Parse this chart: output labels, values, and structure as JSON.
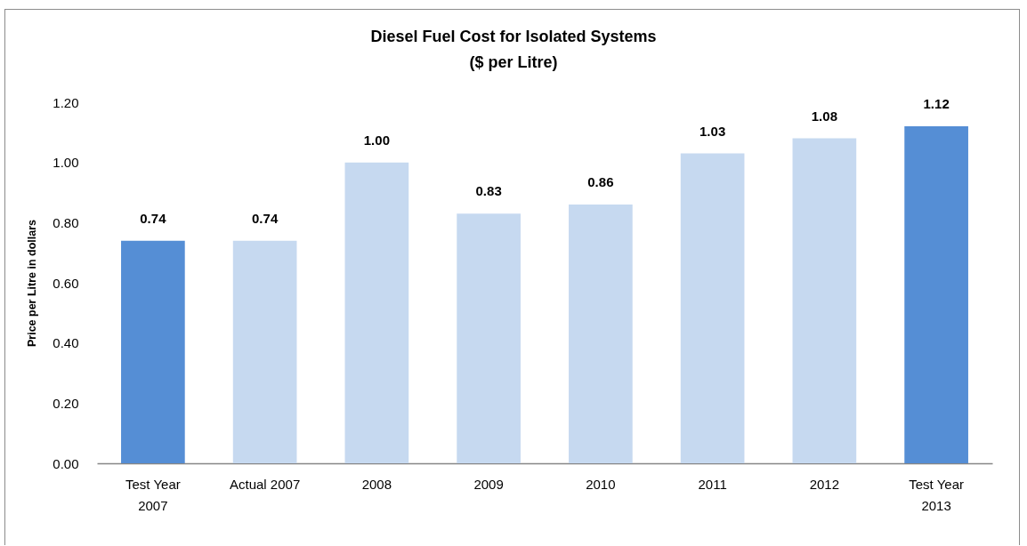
{
  "chart_data": {
    "type": "bar",
    "title": "Diesel Fuel Cost for Isolated Systems",
    "subtitle": "($ per Litre)",
    "ylabel": "Price per Litre in dollars",
    "categories": [
      "Test Year 2007",
      "Actual 2007",
      "2008",
      "2009",
      "2010",
      "2011",
      "2012",
      "Test Year 2013"
    ],
    "values": [
      0.74,
      0.74,
      1.0,
      0.83,
      0.86,
      1.03,
      1.08,
      1.12
    ],
    "colors": [
      "#558ed5",
      "#c6d9f0",
      "#c6d9f0",
      "#c6d9f0",
      "#c6d9f0",
      "#c6d9f0",
      "#c6d9f0",
      "#558ed5"
    ],
    "value_labels": [
      "0.74",
      "0.74",
      "1.00",
      "0.83",
      "0.86",
      "1.03",
      "1.08",
      "1.12"
    ],
    "ylim": [
      0,
      1.2
    ],
    "yticks": [
      {
        "value": 0,
        "label": "0.00"
      },
      {
        "value": 0.2,
        "label": "0.20"
      },
      {
        "value": 0.4,
        "label": "0.40"
      },
      {
        "value": 0.6,
        "label": "0.60"
      },
      {
        "value": 0.8,
        "label": "0.80"
      },
      {
        "value": 1,
        "label": "1.00"
      },
      {
        "value": 1.2,
        "label": "1.20"
      }
    ],
    "grid": false
  }
}
